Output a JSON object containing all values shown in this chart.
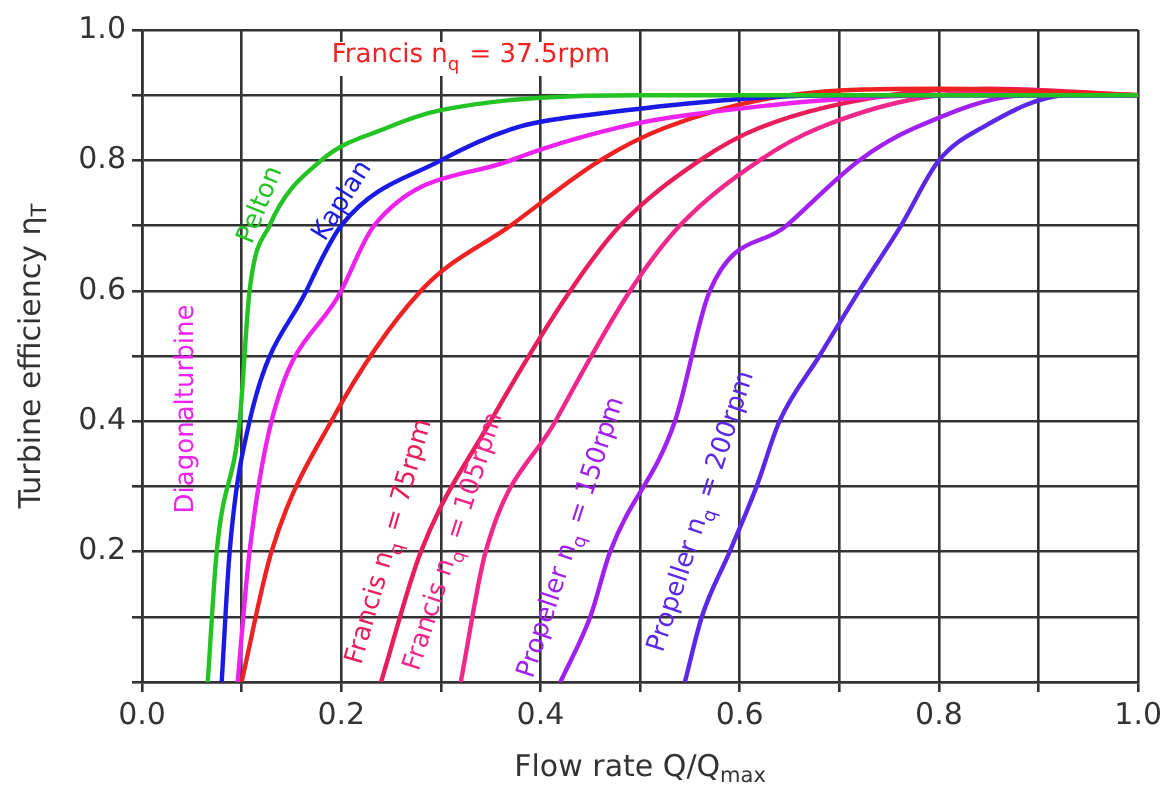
{
  "chart_data": {
    "type": "line",
    "xlabel": "Flow rate Q/Q$_{max}$",
    "ylabel": "Turbine efficiency η$_{T}$",
    "xlim": [
      0,
      1
    ],
    "ylim": [
      0,
      1
    ],
    "xticks": [
      {
        "value": 0,
        "label": "0.0"
      },
      {
        "value": 0.1,
        "label": null
      },
      {
        "value": 0.2,
        "label": "0.2"
      },
      {
        "value": 0.3,
        "label": null
      },
      {
        "value": 0.4,
        "label": "0.4"
      },
      {
        "value": 0.5,
        "label": null
      },
      {
        "value": 0.6,
        "label": "0.6"
      },
      {
        "value": 0.7,
        "label": null
      },
      {
        "value": 0.8,
        "label": "0.8"
      },
      {
        "value": 0.9,
        "label": null
      },
      {
        "value": 1,
        "label": "1.0"
      }
    ],
    "yticks": [
      {
        "value": 0,
        "label": null
      },
      {
        "value": 0.1,
        "label": null
      },
      {
        "value": 0.2,
        "label": "0.2"
      },
      {
        "value": 0.3,
        "label": null
      },
      {
        "value": 0.4,
        "label": "0.4"
      },
      {
        "value": 0.5,
        "label": null
      },
      {
        "value": 0.6,
        "label": "0.6"
      },
      {
        "value": 0.7,
        "label": null
      },
      {
        "value": 0.8,
        "label": "0.8"
      },
      {
        "value": 0.9,
        "label": null
      },
      {
        "value": 1,
        "label": "1.0"
      }
    ],
    "grid": true,
    "legend": false,
    "marker": "none",
    "line_style": "solid",
    "series": [
      {
        "name": "Pelton",
        "color": "#22c322",
        "x": [
          0.066,
          0.075,
          0.098,
          0.108,
          0.128,
          0.18,
          0.246,
          0.3,
          0.5,
          0.7,
          1.0
        ],
        "values": [
          0,
          0.2,
          0.4,
          0.6,
          0.7,
          0.8,
          0.85,
          0.877,
          0.9,
          0.9,
          0.9
        ]
      },
      {
        "name": "Kaplan",
        "color": "#1a1ae6",
        "x": [
          0.08,
          0.088,
          0.108,
          0.165,
          0.2,
          0.3,
          0.375,
          0.45,
          0.7,
          1.0
        ],
        "values": [
          0,
          0.2,
          0.4,
          0.6,
          0.7,
          0.8,
          0.85,
          0.87,
          0.9,
          0.9
        ]
      },
      {
        "name": "Diagonalturbine",
        "color": "#ee22ee",
        "x": [
          0.096,
          0.108,
          0.13,
          0.2,
          0.233,
          0.37,
          0.477,
          0.55,
          0.8,
          1.0
        ],
        "values": [
          0,
          0.2,
          0.4,
          0.6,
          0.7,
          0.8,
          0.85,
          0.87,
          0.9,
          0.9
        ]
      },
      {
        "name": "Francis n$_{q}$ = 37.5rpm",
        "color": "#ee2222",
        "x": [
          0.1,
          0.13,
          0.19,
          0.28,
          0.37,
          0.46,
          0.525,
          0.65,
          0.8,
          1.0
        ],
        "values": [
          0,
          0.2,
          0.4,
          0.6,
          0.7,
          0.8,
          0.85,
          0.9,
          0.91,
          0.9
        ]
      },
      {
        "name": "Francis n$_{q}$ = 75rpm",
        "color": "#e81e5a",
        "x": [
          0.24,
          0.28,
          0.35,
          0.43,
          0.48,
          0.56,
          0.62,
          0.75,
          0.85,
          1.0
        ],
        "values": [
          0,
          0.2,
          0.4,
          0.6,
          0.7,
          0.8,
          0.85,
          0.9,
          0.91,
          0.9
        ]
      },
      {
        "name": "Francis n$_{q}$ = 105rpm",
        "color": "#f0288c",
        "x": [
          0.32,
          0.345,
          0.415,
          0.49,
          0.54,
          0.62,
          0.68,
          0.8,
          0.88,
          1.0
        ],
        "values": [
          0,
          0.2,
          0.4,
          0.6,
          0.7,
          0.8,
          0.85,
          0.9,
          0.905,
          0.9
        ]
      },
      {
        "name": "Propeller n$_{q}$ = 150rpm",
        "color": "#a020f0",
        "x": [
          0.42,
          0.45,
          0.47,
          0.535,
          0.57,
          0.647,
          0.72,
          0.776,
          0.89,
          1.0
        ],
        "values": [
          0,
          0.1,
          0.2,
          0.4,
          0.6,
          0.7,
          0.8,
          0.85,
          0.9,
          0.9
        ]
      },
      {
        "name": "Propeller n$_{q}$ = 200rpm",
        "color": "#5a28e6",
        "x": [
          0.545,
          0.562,
          0.59,
          0.617,
          0.64,
          0.68,
          0.72,
          0.762,
          0.8,
          0.843,
          0.93,
          1.0
        ],
        "values": [
          0,
          0.1,
          0.2,
          0.3,
          0.4,
          0.5,
          0.6,
          0.7,
          0.8,
          0.85,
          0.9,
          0.9
        ]
      }
    ]
  }
}
